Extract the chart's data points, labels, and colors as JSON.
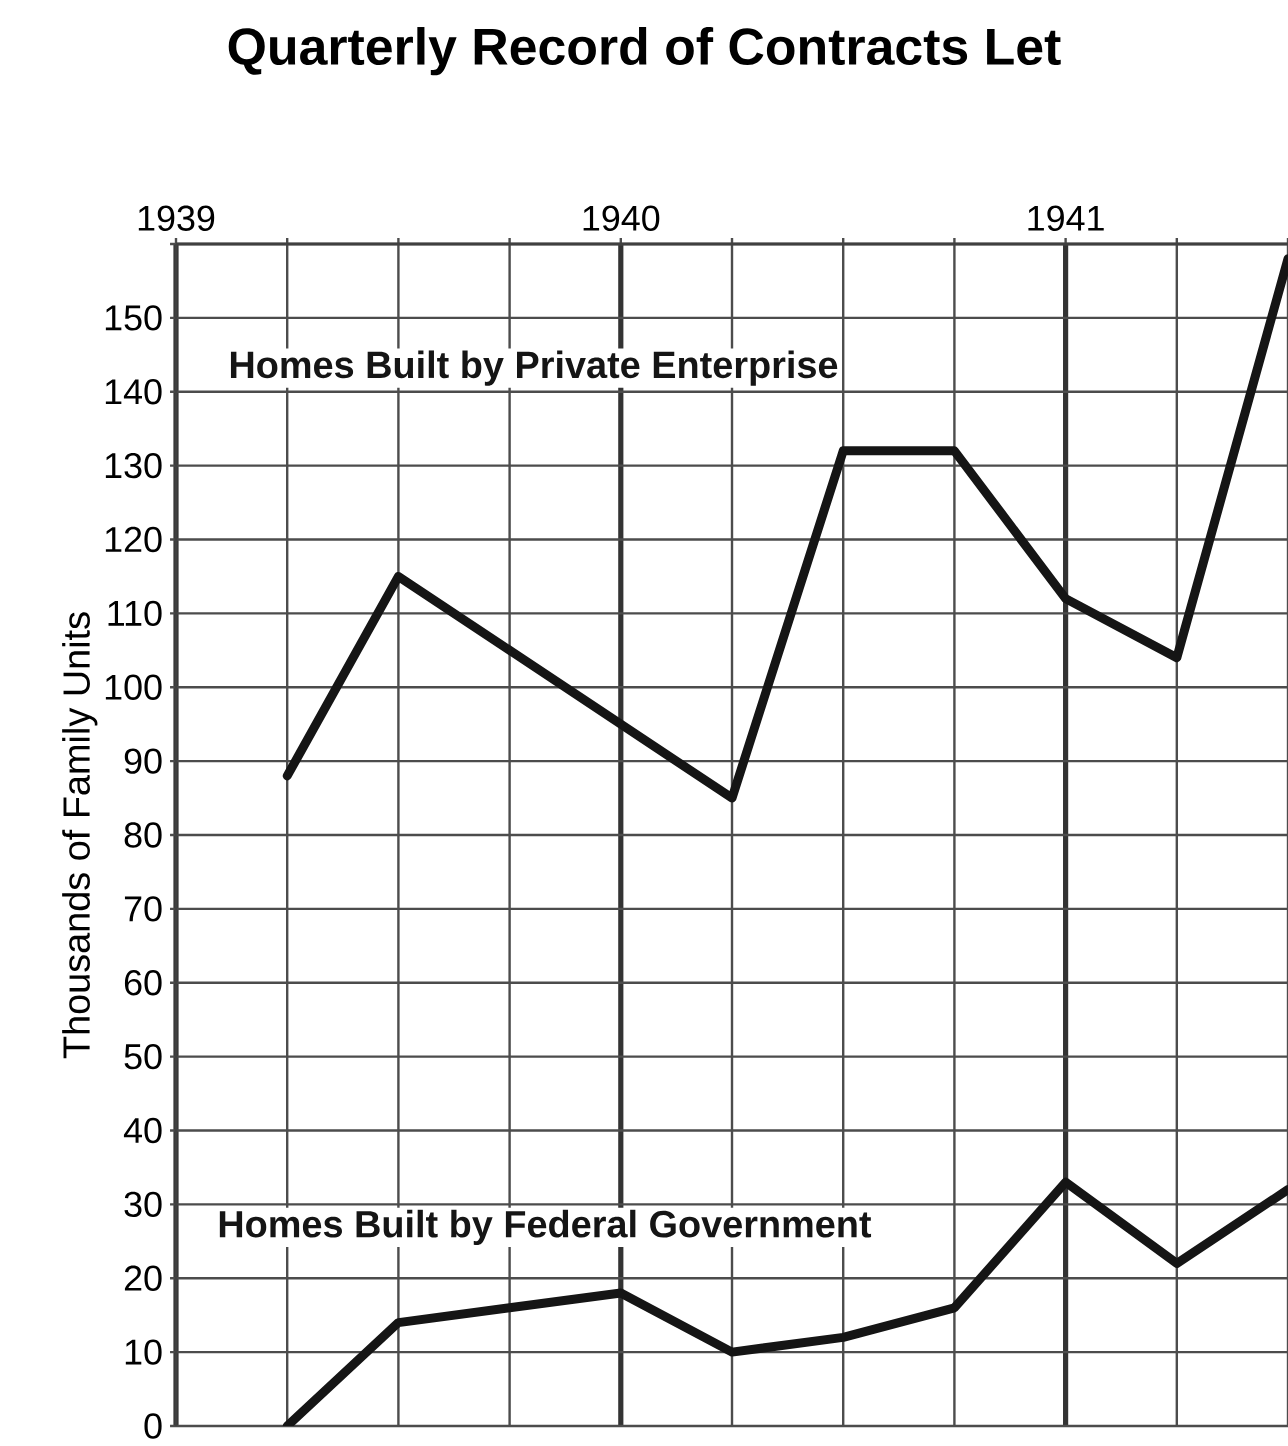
{
  "chart_data": {
    "type": "line",
    "title": "Quarterly Record of Contracts Let",
    "ylabel": "Thousands of Family Units",
    "x": [
      1939.25,
      1939.5,
      1939.75,
      1940,
      1940.25,
      1940.5,
      1940.75,
      1941,
      1941.25,
      1941.5
    ],
    "series": [
      {
        "name": "Homes Built by Private Enterprise",
        "color": "#151515",
        "values": [
          88,
          115,
          105,
          95,
          85,
          132,
          132,
          112,
          104,
          158
        ]
      },
      {
        "name": "Homes Built by Federal Government",
        "color": "#151515",
        "values": [
          0,
          14,
          16,
          18,
          10,
          12,
          16,
          33,
          22,
          32
        ]
      }
    ],
    "xlim": [
      1939,
      1941.5
    ],
    "xticks": [
      1939,
      {
        "value": 1939.25,
        "label": null
      },
      {
        "value": 1939.5,
        "label": null
      },
      {
        "value": 1939.75,
        "label": null
      },
      1940,
      {
        "value": 1940.25,
        "label": null
      },
      {
        "value": 1940.5,
        "label": null
      },
      {
        "value": 1940.75,
        "label": null
      },
      1941,
      {
        "value": 1941.25,
        "label": null
      },
      {
        "value": 1941.5,
        "label": null
      }
    ],
    "ylim": [
      0,
      160
    ],
    "yticks": [
      0,
      10,
      20,
      30,
      40,
      50,
      60,
      70,
      80,
      90,
      100,
      110,
      120,
      130,
      140,
      150,
      {
        "value": 160,
        "label": null
      }
    ],
    "grid": true,
    "marker": "none",
    "line_style": "solid"
  }
}
